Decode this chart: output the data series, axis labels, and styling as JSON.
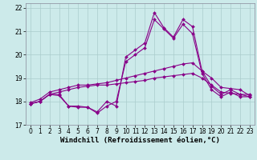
{
  "x": [
    0,
    1,
    2,
    3,
    4,
    5,
    6,
    7,
    8,
    9,
    10,
    11,
    12,
    13,
    14,
    15,
    16,
    17,
    18,
    19,
    20,
    21,
    22,
    23
  ],
  "line1": [
    17.9,
    18.0,
    18.3,
    18.3,
    17.8,
    17.8,
    17.75,
    17.55,
    18.0,
    17.8,
    19.9,
    20.2,
    20.5,
    21.8,
    21.15,
    20.75,
    21.5,
    21.2,
    19.3,
    18.65,
    18.3,
    18.5,
    18.3,
    18.3
  ],
  "line2": [
    17.9,
    18.0,
    18.3,
    18.25,
    17.8,
    17.75,
    17.75,
    17.5,
    17.8,
    18.0,
    19.7,
    20.0,
    20.3,
    21.5,
    21.1,
    20.7,
    21.3,
    20.9,
    19.2,
    18.5,
    18.2,
    18.4,
    18.2,
    18.2
  ],
  "line3": [
    17.95,
    18.1,
    18.4,
    18.5,
    18.6,
    18.7,
    18.7,
    18.75,
    18.8,
    18.9,
    19.0,
    19.1,
    19.2,
    19.3,
    19.4,
    19.5,
    19.6,
    19.65,
    19.3,
    19.0,
    18.6,
    18.55,
    18.5,
    18.25
  ],
  "line4": [
    17.9,
    18.0,
    18.3,
    18.4,
    18.5,
    18.6,
    18.65,
    18.7,
    18.7,
    18.75,
    18.8,
    18.85,
    18.9,
    19.0,
    19.05,
    19.1,
    19.15,
    19.2,
    19.0,
    18.7,
    18.4,
    18.35,
    18.3,
    18.2
  ],
  "line_color": "#880088",
  "background_color": "#cceaea",
  "grid_color": "#aacccc",
  "xlabel": "Windchill (Refroidissement éolien,°C)",
  "ylim": [
    17.0,
    22.2
  ],
  "xlim": [
    -0.5,
    23.5
  ],
  "yticks": [
    17,
    18,
    19,
    20,
    21,
    22
  ],
  "xticks": [
    0,
    1,
    2,
    3,
    4,
    5,
    6,
    7,
    8,
    9,
    10,
    11,
    12,
    13,
    14,
    15,
    16,
    17,
    18,
    19,
    20,
    21,
    22,
    23
  ],
  "markersize": 2.0,
  "linewidth": 0.8,
  "tick_fontsize": 5.5,
  "xlabel_fontsize": 6.5,
  "xlabel_fontweight": "bold"
}
